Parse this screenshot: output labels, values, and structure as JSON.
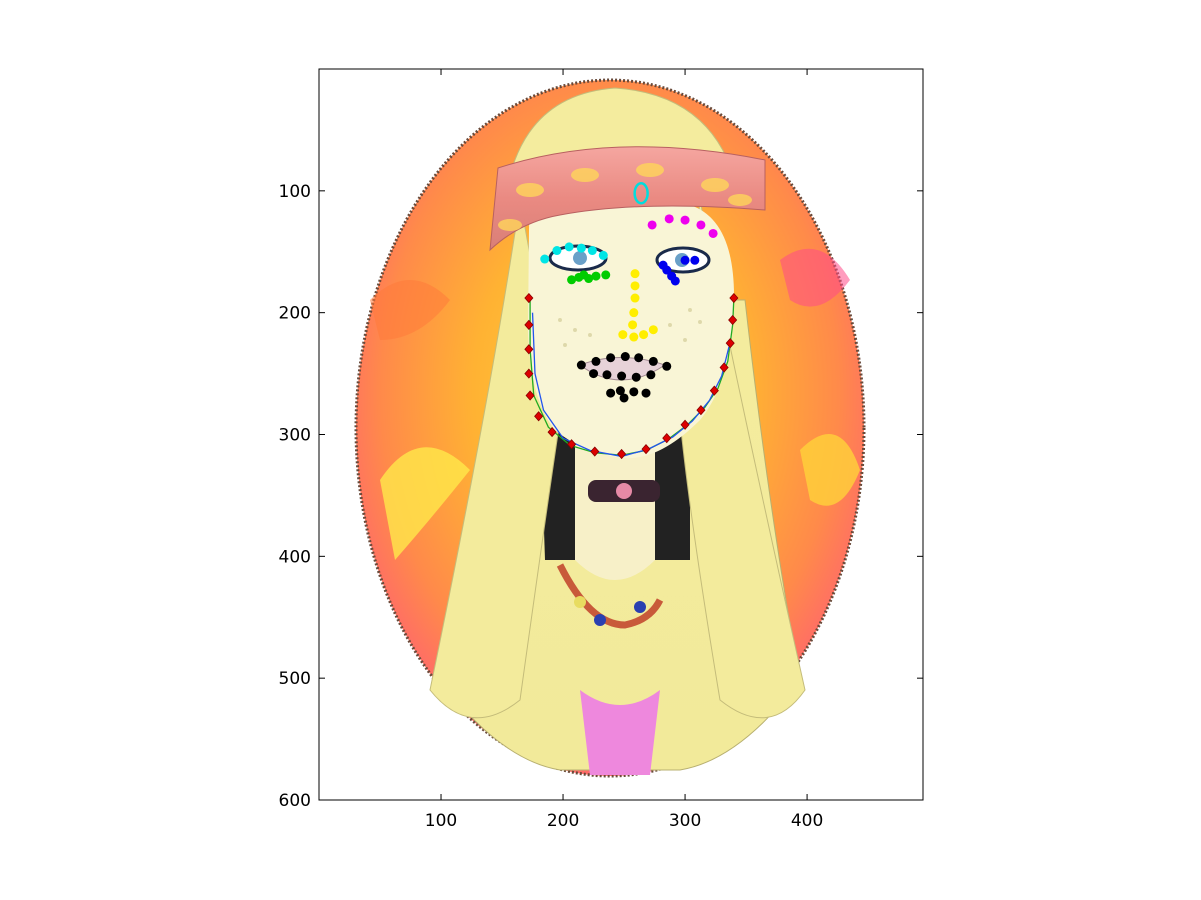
{
  "chart_data": {
    "type": "scatter",
    "title": "",
    "xlabel": "",
    "ylabel": "",
    "xlim": [
      0,
      495
    ],
    "ylim": [
      600,
      0
    ],
    "y_reversed": true,
    "grid": false,
    "background_image": "cartoon-hippie-girl-portrait",
    "x_ticks": [
      100,
      200,
      300,
      400
    ],
    "y_ticks": [
      100,
      200,
      300,
      400,
      500,
      600
    ],
    "x_tick_labels": [
      "100",
      "200",
      "300",
      "400"
    ],
    "y_tick_labels": [
      "100",
      "200",
      "300",
      "400",
      "500",
      "600"
    ],
    "colors": {
      "jaw": "#dd0000",
      "left_brow": "#00e5e5",
      "right_brow": "#ee00ee",
      "left_eye": "#00cc00",
      "right_eye": "#0000ee",
      "nose": "#ffee00",
      "mouth": "#000000",
      "forehead_marker": "#00dddd",
      "fit_curve_outer": "#22aa22",
      "fit_curve_inner": "#2255ee"
    },
    "series": [
      {
        "key": "jaw",
        "marker": "diamond",
        "points": [
          [
            172,
            188
          ],
          [
            172,
            210
          ],
          [
            172,
            230
          ],
          [
            172,
            250
          ],
          [
            173,
            268
          ],
          [
            180,
            285
          ],
          [
            191,
            298
          ],
          [
            207,
            308
          ],
          [
            226,
            314
          ],
          [
            248,
            316
          ],
          [
            268,
            312
          ],
          [
            285,
            303
          ],
          [
            300,
            292
          ],
          [
            313,
            280
          ],
          [
            324,
            264
          ],
          [
            332,
            245
          ],
          [
            337,
            225
          ],
          [
            339,
            206
          ],
          [
            340,
            188
          ]
        ]
      },
      {
        "key": "left_brow",
        "marker": "dot",
        "points": [
          [
            185,
            156
          ],
          [
            195,
            149
          ],
          [
            205,
            146
          ],
          [
            215,
            147
          ],
          [
            224,
            149
          ],
          [
            233,
            153
          ]
        ]
      },
      {
        "key": "right_brow",
        "marker": "dot",
        "points": [
          [
            273,
            128
          ],
          [
            287,
            123
          ],
          [
            300,
            124
          ],
          [
            313,
            128
          ],
          [
            323,
            135
          ]
        ]
      },
      {
        "key": "left_eye",
        "marker": "dot",
        "points": [
          [
            207,
            173
          ],
          [
            213,
            171
          ],
          [
            217,
            169
          ],
          [
            221,
            172
          ],
          [
            227,
            170
          ],
          [
            235,
            169
          ]
        ]
      },
      {
        "key": "right_eye",
        "marker": "dot",
        "points": [
          [
            282,
            161
          ],
          [
            285,
            165
          ],
          [
            289,
            170
          ],
          [
            292,
            174
          ],
          [
            300,
            157
          ],
          [
            308,
            157
          ]
        ]
      },
      {
        "key": "nose",
        "marker": "dot",
        "points": [
          [
            259,
            168
          ],
          [
            259,
            178
          ],
          [
            259,
            188
          ],
          [
            258,
            200
          ],
          [
            257,
            210
          ],
          [
            249,
            218
          ],
          [
            258,
            220
          ],
          [
            266,
            218
          ],
          [
            274,
            214
          ]
        ]
      },
      {
        "key": "mouth",
        "marker": "dot",
        "points": [
          [
            215,
            243
          ],
          [
            227,
            240
          ],
          [
            239,
            237
          ],
          [
            251,
            236
          ],
          [
            262,
            237
          ],
          [
            274,
            240
          ],
          [
            285,
            244
          ],
          [
            272,
            251
          ],
          [
            260,
            253
          ],
          [
            248,
            252
          ],
          [
            236,
            251
          ],
          [
            225,
            250
          ],
          [
            247,
            264
          ],
          [
            258,
            265
          ],
          [
            239,
            266
          ],
          [
            250,
            270
          ],
          [
            268,
            266
          ]
        ]
      },
      {
        "key": "forehead_marker",
        "marker": "ellipse",
        "points": [
          [
            264,
            102
          ]
        ]
      }
    ],
    "curves": [
      {
        "key": "fit_curve_outer",
        "points": [
          [
            173,
            188
          ],
          [
            173,
            230
          ],
          [
            176,
            268
          ],
          [
            188,
            294
          ],
          [
            206,
            309
          ],
          [
            226,
            315
          ],
          [
            248,
            317
          ],
          [
            268,
            313
          ],
          [
            286,
            304
          ],
          [
            302,
            292
          ],
          [
            316,
            278
          ],
          [
            327,
            262
          ],
          [
            335,
            240
          ],
          [
            339,
            210
          ],
          [
            340,
            188
          ]
        ]
      },
      {
        "key": "fit_curve_inner",
        "points": [
          [
            175,
            200
          ],
          [
            177,
            250
          ],
          [
            184,
            280
          ],
          [
            200,
            303
          ],
          [
            222,
            313
          ],
          [
            248,
            318
          ],
          [
            270,
            312
          ],
          [
            290,
            302
          ],
          [
            306,
            289
          ],
          [
            320,
            272
          ],
          [
            330,
            252
          ],
          [
            336,
            228
          ]
        ]
      }
    ]
  }
}
